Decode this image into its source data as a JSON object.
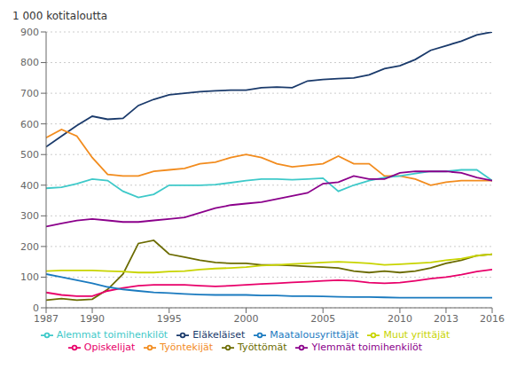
{
  "chart_data": {
    "type": "line",
    "ylabel": "1 000 kotitaloutta",
    "x": [
      1987,
      1988,
      1989,
      1990,
      1991,
      1992,
      1993,
      1994,
      1995,
      1996,
      1997,
      1998,
      1999,
      2000,
      2001,
      2002,
      2003,
      2004,
      2005,
      2006,
      2007,
      2008,
      2009,
      2010,
      2011,
      2012,
      2013,
      2014,
      2015,
      2016
    ],
    "series": [
      {
        "name": "Eläkeläiset",
        "color": "#1a3a6b",
        "values": [
          525,
          560,
          595,
          625,
          615,
          618,
          660,
          680,
          695,
          700,
          705,
          708,
          710,
          710,
          718,
          720,
          718,
          740,
          745,
          748,
          750,
          760,
          780,
          790,
          810,
          840,
          855,
          870,
          890,
          900
        ]
      },
      {
        "name": "Työntekijät",
        "color": "#f28c1e",
        "values": [
          555,
          582,
          560,
          490,
          435,
          430,
          430,
          445,
          450,
          455,
          470,
          475,
          490,
          500,
          490,
          470,
          460,
          465,
          470,
          495,
          470,
          470,
          430,
          430,
          420,
          400,
          410,
          415,
          415,
          415
        ]
      },
      {
        "name": "Alemmat toimihenkilöt",
        "color": "#3ec9c9",
        "values": [
          390,
          393,
          405,
          420,
          415,
          380,
          360,
          370,
          400,
          400,
          400,
          402,
          408,
          415,
          420,
          420,
          418,
          420,
          423,
          380,
          400,
          415,
          425,
          430,
          438,
          445,
          445,
          450,
          450,
          415
        ]
      },
      {
        "name": "Ylemmät toimihenkilöt",
        "color": "#8b008b",
        "values": [
          265,
          275,
          285,
          290,
          285,
          280,
          280,
          285,
          290,
          295,
          310,
          325,
          335,
          340,
          345,
          355,
          365,
          375,
          405,
          410,
          430,
          420,
          420,
          440,
          445,
          445,
          445,
          440,
          425,
          415
        ]
      },
      {
        "name": "Työttömät",
        "color": "#6b6b00",
        "values": [
          25,
          30,
          25,
          28,
          60,
          110,
          210,
          220,
          175,
          165,
          155,
          148,
          145,
          145,
          140,
          140,
          138,
          135,
          133,
          130,
          120,
          115,
          120,
          115,
          120,
          130,
          145,
          155,
          170,
          175
        ]
      },
      {
        "name": "Muut yrittäjät",
        "color": "#c8d400",
        "values": [
          120,
          122,
          122,
          122,
          120,
          118,
          115,
          115,
          118,
          120,
          125,
          128,
          130,
          133,
          138,
          140,
          143,
          145,
          148,
          150,
          148,
          145,
          140,
          142,
          145,
          148,
          155,
          160,
          170,
          175
        ]
      },
      {
        "name": "Opiskelijat",
        "color": "#e8006a",
        "values": [
          50,
          42,
          38,
          38,
          55,
          65,
          72,
          75,
          75,
          75,
          72,
          70,
          72,
          75,
          78,
          80,
          83,
          85,
          88,
          90,
          88,
          82,
          80,
          82,
          88,
          95,
          100,
          108,
          118,
          125
        ]
      },
      {
        "name": "Maatalousyrittäjät",
        "color": "#1a7abf",
        "values": [
          110,
          100,
          90,
          80,
          68,
          60,
          55,
          50,
          48,
          45,
          43,
          42,
          42,
          42,
          40,
          40,
          38,
          38,
          37,
          36,
          35,
          35,
          34,
          33,
          33,
          33,
          33,
          33,
          33,
          33
        ]
      }
    ],
    "xlim": [
      1987,
      2016
    ],
    "xticks": [
      1987,
      1990,
      1995,
      2000,
      2005,
      2010,
      2013,
      2016
    ],
    "ylim": [
      0,
      900
    ],
    "yticks": [
      0,
      100,
      200,
      300,
      400,
      500,
      600,
      700,
      800,
      900
    ],
    "grid": true,
    "legend": "bottom"
  }
}
